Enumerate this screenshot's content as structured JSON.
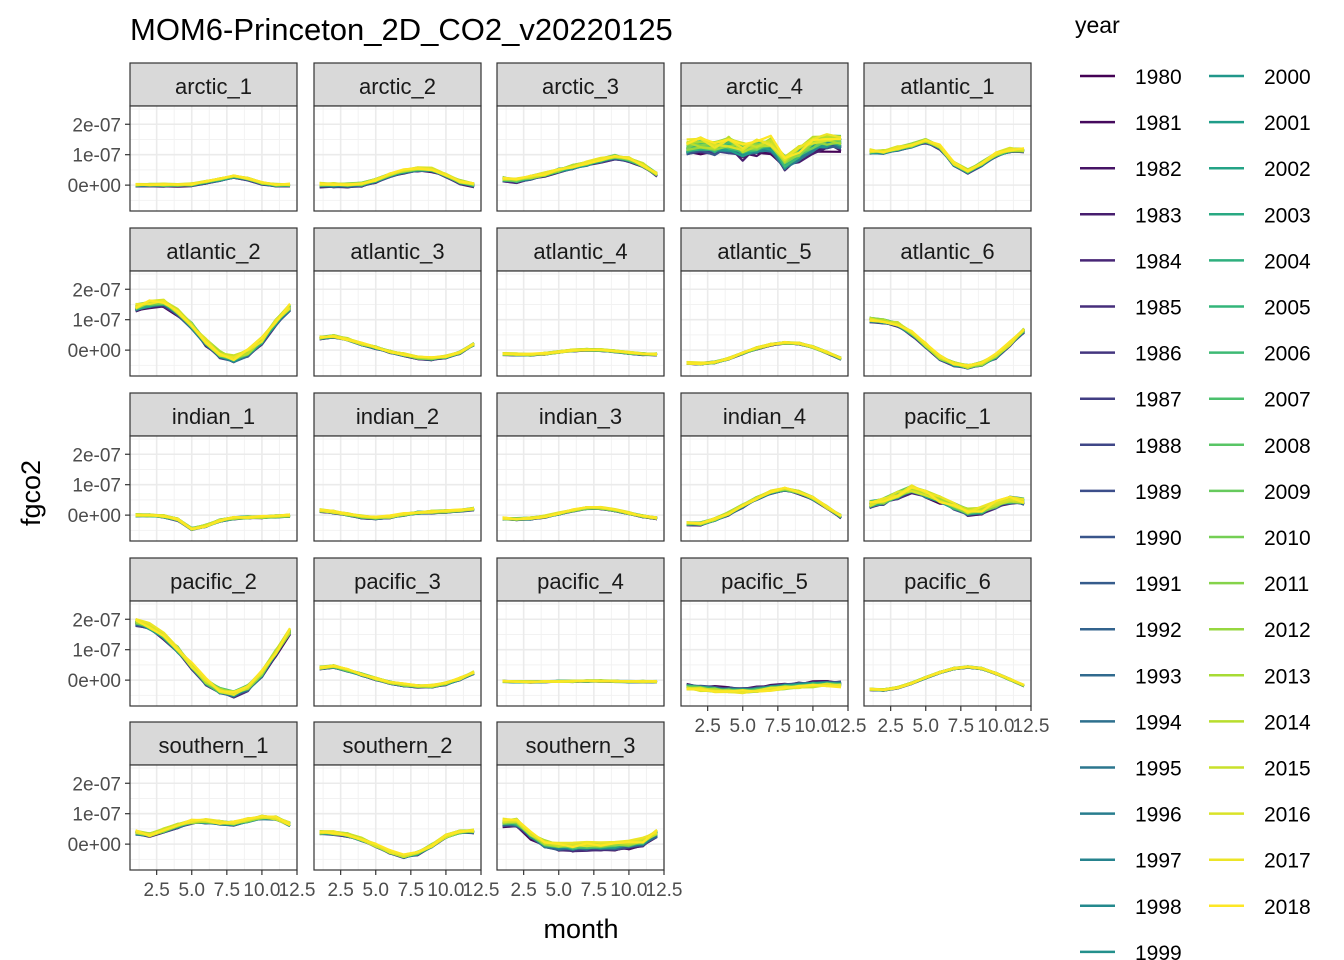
{
  "chart_data": {
    "type": "line",
    "title": "MOM6-Princeton_2D_CO2_v20220125",
    "xlabel": "month",
    "ylabel": "fgco2",
    "legend_title": "year",
    "legend_position": "right",
    "grid": true,
    "facet_layout": {
      "ncol": 5,
      "nrow": 5
    },
    "x": [
      1,
      2,
      3,
      4,
      5,
      6,
      7,
      8,
      9,
      10,
      11,
      12
    ],
    "xlim": [
      0.6,
      12.5
    ],
    "ylim": [
      -8.5e-08,
      2.6e-07
    ],
    "x_ticks": [
      2.5,
      5.0,
      7.5,
      10.0,
      12.5
    ],
    "x_tick_labels": [
      "2.5",
      "5.0",
      "7.5",
      "10.0",
      "12.5"
    ],
    "y_ticks": [
      0,
      1e-07,
      2e-07
    ],
    "y_tick_labels": [
      "0e+00",
      "1e-07",
      "2e-07"
    ],
    "year_start": 1980,
    "year_end": 2018,
    "years": [
      "1980",
      "1981",
      "1982",
      "1983",
      "1984",
      "1985",
      "1986",
      "1987",
      "1988",
      "1989",
      "1990",
      "1991",
      "1992",
      "1993",
      "1994",
      "1995",
      "1996",
      "1997",
      "1998",
      "1999",
      "2000",
      "2001",
      "2002",
      "2003",
      "2004",
      "2005",
      "2006",
      "2007",
      "2008",
      "2009",
      "2010",
      "2011",
      "2012",
      "2013",
      "2014",
      "2015",
      "2016",
      "2017",
      "2018"
    ],
    "colorscale": "viridis",
    "colorscale_stops": [
      "#440154",
      "#482878",
      "#3E4A89",
      "#31688E",
      "#26828E",
      "#1F9E89",
      "#35B779",
      "#6DCD59",
      "#B4DE2C",
      "#FDE725"
    ],
    "panels": [
      {
        "name": "arctic_1",
        "spread": 4e-09,
        "trend": 0.6,
        "mean": [
          0,
          0,
          0,
          0,
          1e-09,
          1e-08,
          1.8e-08,
          2.8e-08,
          2e-08,
          6e-09,
          0,
          0
        ]
      },
      {
        "name": "arctic_2",
        "spread": 6e-09,
        "trend": 0.6,
        "mean": [
          0,
          0,
          0,
          2e-09,
          1.5e-08,
          3.2e-08,
          4.5e-08,
          5.2e-08,
          5e-08,
          3.2e-08,
          1e-08,
          0
        ]
      },
      {
        "name": "arctic_3",
        "spread": 8e-09,
        "trend": 0.4,
        "mean": [
          2e-08,
          1.5e-08,
          2.5e-08,
          3.5e-08,
          4.8e-08,
          6e-08,
          7e-08,
          8.2e-08,
          9.2e-08,
          8.5e-08,
          6.5e-08,
          3.5e-08
        ]
      },
      {
        "name": "arctic_4",
        "spread": 2.5e-08,
        "trend": 0.6,
        "mean": [
          1.2e-07,
          1.3e-07,
          1.2e-07,
          1.3e-07,
          1.1e-07,
          1.25e-07,
          1.3e-07,
          7e-08,
          1e-07,
          1.3e-07,
          1.4e-07,
          1.4e-07
        ]
      },
      {
        "name": "atlantic_1",
        "spread": 8e-09,
        "trend": 0.35,
        "mean": [
          1.1e-07,
          1.1e-07,
          1.2e-07,
          1.3e-07,
          1.45e-07,
          1.25e-07,
          7e-08,
          4.5e-08,
          7e-08,
          1e-07,
          1.15e-07,
          1.15e-07
        ]
      },
      {
        "name": "atlantic_2",
        "spread": 1.2e-08,
        "trend": 0.45,
        "mean": [
          1.4e-07,
          1.5e-07,
          1.55e-07,
          1.25e-07,
          8e-08,
          2.5e-08,
          -1.5e-08,
          -3e-08,
          -1e-08,
          3e-08,
          9e-08,
          1.4e-07
        ]
      },
      {
        "name": "atlantic_3",
        "spread": 5e-09,
        "trend": 0.3,
        "mean": [
          4e-08,
          4.5e-08,
          3.5e-08,
          2e-08,
          8e-09,
          -5e-09,
          -1.5e-08,
          -2.5e-08,
          -2.8e-08,
          -2.2e-08,
          -8e-09,
          2e-08
        ]
      },
      {
        "name": "atlantic_4",
        "spread": 4e-09,
        "trend": 0.2,
        "mean": [
          -1.3e-08,
          -1.4e-08,
          -1.5e-08,
          -1.2e-08,
          -6e-09,
          -1e-09,
          1e-09,
          0,
          -4e-09,
          -9e-09,
          -1.3e-08,
          -1.4e-08
        ]
      },
      {
        "name": "atlantic_5",
        "spread": 4e-09,
        "trend": 0.2,
        "mean": [
          -4.2e-08,
          -4.4e-08,
          -4e-08,
          -2.8e-08,
          -1e-08,
          6e-09,
          1.8e-08,
          2.4e-08,
          2.2e-08,
          1e-08,
          -8e-09,
          -2.8e-08
        ]
      },
      {
        "name": "atlantic_6",
        "spread": 9e-09,
        "trend": 0.3,
        "mean": [
          1e-07,
          9.5e-08,
          8.5e-08,
          5.5e-08,
          1.5e-08,
          -2.5e-08,
          -4.5e-08,
          -5.5e-08,
          -4.5e-08,
          -2e-08,
          2e-08,
          6.5e-08
        ]
      },
      {
        "name": "indian_1",
        "spread": 5e-09,
        "trend": 0.2,
        "mean": [
          0,
          -1e-09,
          -4e-09,
          -1.5e-08,
          -4.5e-08,
          -3.5e-08,
          -1.8e-08,
          -1e-08,
          -7e-09,
          -6e-09,
          -4e-09,
          -2e-09
        ]
      },
      {
        "name": "indian_2",
        "spread": 5e-09,
        "trend": 0.3,
        "mean": [
          1.5e-08,
          1e-08,
          2e-09,
          -6e-09,
          -1e-08,
          -6e-09,
          2e-09,
          8e-09,
          1e-08,
          1.2e-08,
          1.5e-08,
          2e-08
        ]
      },
      {
        "name": "indian_3",
        "spread": 4e-09,
        "trend": 0.3,
        "mean": [
          -1.1e-08,
          -1.3e-08,
          -1.1e-08,
          -5e-09,
          5e-09,
          1.5e-08,
          2.3e-08,
          2.3e-08,
          1.6e-08,
          6e-09,
          -4e-09,
          -1e-08
        ]
      },
      {
        "name": "indian_4",
        "spread": 6e-09,
        "trend": 0.35,
        "mean": [
          -2.8e-08,
          -2.8e-08,
          -1.5e-08,
          5e-09,
          3e-08,
          5.5e-08,
          7.5e-08,
          8.5e-08,
          7.5e-08,
          5.5e-08,
          2.5e-08,
          -5e-09
        ]
      },
      {
        "name": "pacific_1",
        "spread": 1.5e-08,
        "trend": 0.2,
        "mean": [
          3.5e-08,
          4.5e-08,
          6.5e-08,
          8.5e-08,
          7e-08,
          5e-08,
          3e-08,
          1e-08,
          1.5e-08,
          3.5e-08,
          5e-08,
          4.5e-08
        ]
      },
      {
        "name": "pacific_2",
        "spread": 1.2e-08,
        "trend": 0.4,
        "mean": [
          1.9e-07,
          1.75e-07,
          1.45e-07,
          1e-07,
          4.5e-08,
          -5e-09,
          -3.5e-08,
          -4.5e-08,
          -2.5e-08,
          2e-08,
          9e-08,
          1.6e-07
        ]
      },
      {
        "name": "pacific_3",
        "spread": 5e-09,
        "trend": 0.3,
        "mean": [
          4e-08,
          4.5e-08,
          3.2e-08,
          1.8e-08,
          4e-09,
          -8e-09,
          -1.6e-08,
          -2e-08,
          -2e-08,
          -1.2e-08,
          4e-09,
          2.5e-08
        ]
      },
      {
        "name": "pacific_4",
        "spread": 3e-09,
        "trend": 0.1,
        "mean": [
          -4e-09,
          -5e-09,
          -6e-09,
          -5e-09,
          -4e-09,
          -4e-09,
          -3e-09,
          -3e-09,
          -4e-09,
          -5e-09,
          -5e-09,
          -5e-09
        ]
      },
      {
        "name": "pacific_5",
        "spread": 8e-09,
        "trend": -0.6,
        "mean": [
          -2.2e-08,
          -2.6e-08,
          -3e-08,
          -3.3e-08,
          -3.4e-08,
          -3.1e-08,
          -2.6e-08,
          -2.1e-08,
          -1.7e-08,
          -1.4e-08,
          -1.3e-08,
          -1.4e-08
        ]
      },
      {
        "name": "pacific_6",
        "spread": 3e-09,
        "trend": 0.2,
        "mean": [
          -3e-08,
          -3.2e-08,
          -2.5e-08,
          -1e-08,
          8e-09,
          2.5e-08,
          3.8e-08,
          4.3e-08,
          3.8e-08,
          2.2e-08,
          2e-09,
          -1.8e-08
        ]
      },
      {
        "name": "southern_1",
        "spread": 8e-09,
        "trend": 0.25,
        "mean": [
          3.8e-08,
          3e-08,
          4.5e-08,
          6e-08,
          7.3e-08,
          7.5e-08,
          7e-08,
          6.8e-08,
          7.8e-08,
          8.8e-08,
          8.5e-08,
          6.5e-08
        ]
      },
      {
        "name": "southern_2",
        "spread": 7e-09,
        "trend": 0.25,
        "mean": [
          3.8e-08,
          3.6e-08,
          3e-08,
          1.5e-08,
          -5e-09,
          -2.5e-08,
          -4e-08,
          -3e-08,
          -5e-09,
          2.5e-08,
          4e-08,
          4.2e-08
        ]
      },
      {
        "name": "southern_3",
        "spread": 1.2e-08,
        "trend": 0.6,
        "mean": [
          7e-08,
          7e-08,
          3e-08,
          0,
          -8e-09,
          -1e-08,
          -8e-09,
          -8e-09,
          -6e-09,
          -2e-09,
          6e-09,
          3.5e-08
        ]
      }
    ]
  }
}
